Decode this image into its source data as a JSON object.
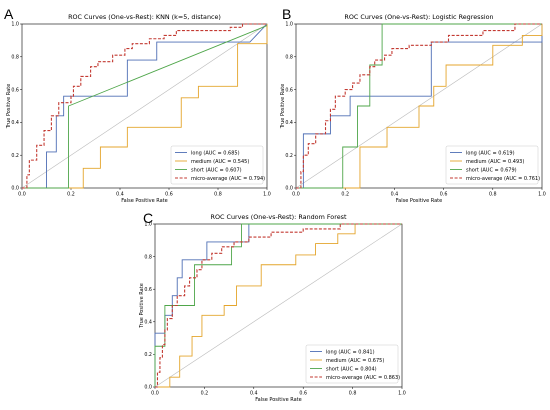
{
  "panel_letters": [
    "A",
    "B",
    "C"
  ],
  "colors": {
    "long": "#4f6fb5",
    "medium": "#e4a52c",
    "short": "#4fa64a",
    "micro": "#c33a32",
    "diagonal": "#bbbbbb"
  },
  "chart_data": [
    {
      "type": "line",
      "title": "ROC Curves (One-vs-Rest): KNN (k=5, distance)",
      "xlabel": "False Positive Rate",
      "ylabel": "True Positive Rate",
      "xlim": [
        0.0,
        1.0
      ],
      "ylim": [
        0.0,
        1.0
      ],
      "xticks": [
        "0.0",
        "0.2",
        "0.4",
        "0.6",
        "0.8",
        "1.0"
      ],
      "yticks": [
        "0.0",
        "0.2",
        "0.4",
        "0.6",
        "0.8",
        "1.0"
      ],
      "grid": false,
      "legend_position": "lower-right",
      "diagonal": true,
      "series": [
        {
          "name": "long (AUC = 0.685)",
          "key": "long",
          "dash": false,
          "points": [
            [
              0,
              0
            ],
            [
              0.1,
              0
            ],
            [
              0.1,
              0.22
            ],
            [
              0.14,
              0.22
            ],
            [
              0.14,
              0.44
            ],
            [
              0.17,
              0.44
            ],
            [
              0.17,
              0.56
            ],
            [
              0.43,
              0.56
            ],
            [
              0.43,
              0.78
            ],
            [
              0.55,
              0.78
            ],
            [
              0.55,
              0.89
            ],
            [
              0.93,
              0.89
            ],
            [
              1,
              1
            ]
          ]
        },
        {
          "name": "medium (AUC = 0.545)",
          "key": "medium",
          "dash": false,
          "points": [
            [
              0,
              0
            ],
            [
              0.25,
              0
            ],
            [
              0.25,
              0.12
            ],
            [
              0.32,
              0.12
            ],
            [
              0.32,
              0.25
            ],
            [
              0.43,
              0.25
            ],
            [
              0.43,
              0.37
            ],
            [
              0.65,
              0.37
            ],
            [
              0.65,
              0.55
            ],
            [
              0.72,
              0.55
            ],
            [
              0.72,
              0.62
            ],
            [
              0.88,
              0.62
            ],
            [
              0.88,
              0.88
            ],
            [
              1,
              0.88
            ],
            [
              1,
              1
            ]
          ]
        },
        {
          "name": "short (AUC = 0.607)",
          "key": "short",
          "dash": false,
          "points": [
            [
              0,
              0
            ],
            [
              0.19,
              0
            ],
            [
              0.19,
              0.5
            ],
            [
              1,
              0.99
            ]
          ]
        },
        {
          "name": "micro-average (AUC = 0.794)",
          "key": "micro",
          "dash": true,
          "points": [
            [
              0,
              0
            ],
            [
              0.02,
              0
            ],
            [
              0.02,
              0.08
            ],
            [
              0.03,
              0.08
            ],
            [
              0.03,
              0.17
            ],
            [
              0.06,
              0.17
            ],
            [
              0.06,
              0.26
            ],
            [
              0.09,
              0.26
            ],
            [
              0.09,
              0.35
            ],
            [
              0.12,
              0.35
            ],
            [
              0.12,
              0.44
            ],
            [
              0.15,
              0.44
            ],
            [
              0.15,
              0.52
            ],
            [
              0.2,
              0.52
            ],
            [
              0.2,
              0.56
            ],
            [
              0.21,
              0.56
            ],
            [
              0.21,
              0.62
            ],
            [
              0.24,
              0.62
            ],
            [
              0.24,
              0.68
            ],
            [
              0.28,
              0.68
            ],
            [
              0.28,
              0.74
            ],
            [
              0.31,
              0.74
            ],
            [
              0.31,
              0.77
            ],
            [
              0.37,
              0.77
            ],
            [
              0.37,
              0.81
            ],
            [
              0.42,
              0.81
            ],
            [
              0.42,
              0.85
            ],
            [
              0.45,
              0.85
            ],
            [
              0.45,
              0.88
            ],
            [
              0.52,
              0.88
            ],
            [
              0.52,
              0.91
            ],
            [
              0.58,
              0.91
            ],
            [
              0.58,
              0.93
            ],
            [
              0.63,
              0.93
            ],
            [
              0.63,
              0.96
            ],
            [
              0.85,
              0.96
            ],
            [
              0.85,
              0.98
            ],
            [
              0.9,
              0.98
            ],
            [
              0.9,
              1
            ],
            [
              1,
              1
            ]
          ]
        }
      ]
    },
    {
      "type": "line",
      "title": "ROC Curves (One-vs-Rest): Logistic Regression",
      "xlabel": "False Positive Rate",
      "ylabel": "True Positive Rate",
      "xlim": [
        0.0,
        1.0
      ],
      "ylim": [
        0.0,
        1.0
      ],
      "xticks": [
        "0.0",
        "0.2",
        "0.4",
        "0.6",
        "0.8",
        "1.0"
      ],
      "yticks": [
        "0.0",
        "0.2",
        "0.4",
        "0.6",
        "0.8",
        "1.0"
      ],
      "grid": false,
      "legend_position": "lower-right",
      "diagonal": true,
      "series": [
        {
          "name": "long (AUC = 0.619)",
          "key": "long",
          "dash": false,
          "points": [
            [
              0,
              0
            ],
            [
              0.03,
              0
            ],
            [
              0.03,
              0.33
            ],
            [
              0.14,
              0.33
            ],
            [
              0.14,
              0.44
            ],
            [
              0.22,
              0.44
            ],
            [
              0.22,
              0.56
            ],
            [
              0.55,
              0.56
            ],
            [
              0.55,
              0.89
            ],
            [
              1,
              0.89
            ],
            [
              1,
              1
            ]
          ]
        },
        {
          "name": "medium (AUC = 0.493)",
          "key": "medium",
          "dash": false,
          "points": [
            [
              0,
              0
            ],
            [
              0.26,
              0
            ],
            [
              0.26,
              0.25
            ],
            [
              0.37,
              0.25
            ],
            [
              0.37,
              0.37
            ],
            [
              0.5,
              0.37
            ],
            [
              0.5,
              0.5
            ],
            [
              0.56,
              0.5
            ],
            [
              0.56,
              0.62
            ],
            [
              0.61,
              0.62
            ],
            [
              0.61,
              0.75
            ],
            [
              0.8,
              0.75
            ],
            [
              0.8,
              0.87
            ],
            [
              0.92,
              0.87
            ],
            [
              0.92,
              0.93
            ],
            [
              1,
              0.93
            ],
            [
              1,
              1
            ]
          ]
        },
        {
          "name": "short (AUC = 0.679)",
          "key": "short",
          "dash": false,
          "points": [
            [
              0,
              0
            ],
            [
              0.19,
              0
            ],
            [
              0.19,
              0.25
            ],
            [
              0.25,
              0.25
            ],
            [
              0.25,
              0.5
            ],
            [
              0.3,
              0.5
            ],
            [
              0.3,
              0.75
            ],
            [
              0.35,
              0.75
            ],
            [
              0.35,
              1
            ],
            [
              1,
              1
            ]
          ]
        },
        {
          "name": "micro-average (AUC = 0.761)",
          "key": "micro",
          "dash": true,
          "points": [
            [
              0,
              0
            ],
            [
              0.02,
              0
            ],
            [
              0.02,
              0.1
            ],
            [
              0.03,
              0.1
            ],
            [
              0.03,
              0.2
            ],
            [
              0.05,
              0.2
            ],
            [
              0.05,
              0.27
            ],
            [
              0.08,
              0.27
            ],
            [
              0.08,
              0.33
            ],
            [
              0.12,
              0.33
            ],
            [
              0.12,
              0.41
            ],
            [
              0.14,
              0.41
            ],
            [
              0.14,
              0.48
            ],
            [
              0.16,
              0.48
            ],
            [
              0.16,
              0.56
            ],
            [
              0.2,
              0.56
            ],
            [
              0.2,
              0.6
            ],
            [
              0.23,
              0.6
            ],
            [
              0.23,
              0.64
            ],
            [
              0.26,
              0.64
            ],
            [
              0.26,
              0.69
            ],
            [
              0.3,
              0.69
            ],
            [
              0.3,
              0.74
            ],
            [
              0.32,
              0.74
            ],
            [
              0.32,
              0.78
            ],
            [
              0.36,
              0.78
            ],
            [
              0.36,
              0.81
            ],
            [
              0.39,
              0.81
            ],
            [
              0.39,
              0.85
            ],
            [
              0.46,
              0.85
            ],
            [
              0.46,
              0.87
            ],
            [
              0.55,
              0.87
            ],
            [
              0.55,
              0.89
            ],
            [
              0.62,
              0.89
            ],
            [
              0.62,
              0.93
            ],
            [
              0.76,
              0.93
            ],
            [
              0.76,
              0.96
            ],
            [
              0.89,
              0.96
            ],
            [
              0.89,
              1
            ],
            [
              1,
              1
            ]
          ]
        }
      ]
    },
    {
      "type": "line",
      "title": "ROC Curves (One-vs-Rest): Random Forest",
      "xlabel": "False Positive Rate",
      "ylabel": "True Positive Rate",
      "xlim": [
        0.0,
        1.0
      ],
      "ylim": [
        0.0,
        1.0
      ],
      "xticks": [
        "0.0",
        "0.2",
        "0.4",
        "0.6",
        "0.8",
        "1.0"
      ],
      "yticks": [
        "0.0",
        "0.2",
        "0.4",
        "0.6",
        "0.8",
        "1.0"
      ],
      "grid": false,
      "legend_position": "lower-right",
      "diagonal": true,
      "series": [
        {
          "name": "long (AUC = 0.841)",
          "key": "long",
          "dash": false,
          "points": [
            [
              0,
              0
            ],
            [
              0,
              0.33
            ],
            [
              0.04,
              0.33
            ],
            [
              0.04,
              0.44
            ],
            [
              0.07,
              0.44
            ],
            [
              0.07,
              0.56
            ],
            [
              0.09,
              0.56
            ],
            [
              0.09,
              0.67
            ],
            [
              0.11,
              0.67
            ],
            [
              0.11,
              0.78
            ],
            [
              0.21,
              0.78
            ],
            [
              0.21,
              0.89
            ],
            [
              0.38,
              0.89
            ],
            [
              0.38,
              1
            ],
            [
              1,
              1
            ]
          ]
        },
        {
          "name": "medium (AUC = 0.675)",
          "key": "medium",
          "dash": false,
          "points": [
            [
              0,
              0
            ],
            [
              0.06,
              0
            ],
            [
              0.06,
              0.06
            ],
            [
              0.1,
              0.06
            ],
            [
              0.1,
              0.19
            ],
            [
              0.15,
              0.19
            ],
            [
              0.15,
              0.31
            ],
            [
              0.19,
              0.31
            ],
            [
              0.19,
              0.44
            ],
            [
              0.28,
              0.44
            ],
            [
              0.28,
              0.5
            ],
            [
              0.33,
              0.5
            ],
            [
              0.33,
              0.62
            ],
            [
              0.43,
              0.62
            ],
            [
              0.43,
              0.75
            ],
            [
              0.57,
              0.75
            ],
            [
              0.57,
              0.81
            ],
            [
              0.65,
              0.81
            ],
            [
              0.65,
              0.88
            ],
            [
              0.74,
              0.88
            ],
            [
              0.74,
              0.94
            ],
            [
              0.81,
              0.94
            ],
            [
              0.81,
              1
            ],
            [
              1,
              1
            ]
          ]
        },
        {
          "name": "short (AUC = 0.804)",
          "key": "short",
          "dash": false,
          "points": [
            [
              0,
              0
            ],
            [
              0,
              0.25
            ],
            [
              0.04,
              0.25
            ],
            [
              0.04,
              0.5
            ],
            [
              0.16,
              0.5
            ],
            [
              0.16,
              0.75
            ],
            [
              0.31,
              0.75
            ],
            [
              0.31,
              0.86
            ],
            [
              0.35,
              0.86
            ],
            [
              0.35,
              1
            ],
            [
              1,
              1
            ]
          ]
        },
        {
          "name": "micro-average (AUC = 0.863)",
          "key": "micro",
          "dash": true,
          "points": [
            [
              0,
              0
            ],
            [
              0.01,
              0
            ],
            [
              0.01,
              0.09
            ],
            [
              0.02,
              0.09
            ],
            [
              0.02,
              0.18
            ],
            [
              0.03,
              0.18
            ],
            [
              0.03,
              0.26
            ],
            [
              0.04,
              0.26
            ],
            [
              0.04,
              0.35
            ],
            [
              0.05,
              0.35
            ],
            [
              0.05,
              0.42
            ],
            [
              0.07,
              0.42
            ],
            [
              0.07,
              0.5
            ],
            [
              0.09,
              0.5
            ],
            [
              0.09,
              0.56
            ],
            [
              0.12,
              0.56
            ],
            [
              0.12,
              0.62
            ],
            [
              0.14,
              0.62
            ],
            [
              0.14,
              0.67
            ],
            [
              0.17,
              0.67
            ],
            [
              0.17,
              0.72
            ],
            [
              0.19,
              0.72
            ],
            [
              0.19,
              0.78
            ],
            [
              0.23,
              0.78
            ],
            [
              0.23,
              0.82
            ],
            [
              0.27,
              0.82
            ],
            [
              0.27,
              0.86
            ],
            [
              0.32,
              0.86
            ],
            [
              0.32,
              0.89
            ],
            [
              0.38,
              0.89
            ],
            [
              0.38,
              0.92
            ],
            [
              0.47,
              0.92
            ],
            [
              0.47,
              0.95
            ],
            [
              0.6,
              0.95
            ],
            [
              0.6,
              0.97
            ],
            [
              0.75,
              0.97
            ],
            [
              0.75,
              1
            ],
            [
              1,
              1
            ]
          ]
        }
      ]
    }
  ]
}
